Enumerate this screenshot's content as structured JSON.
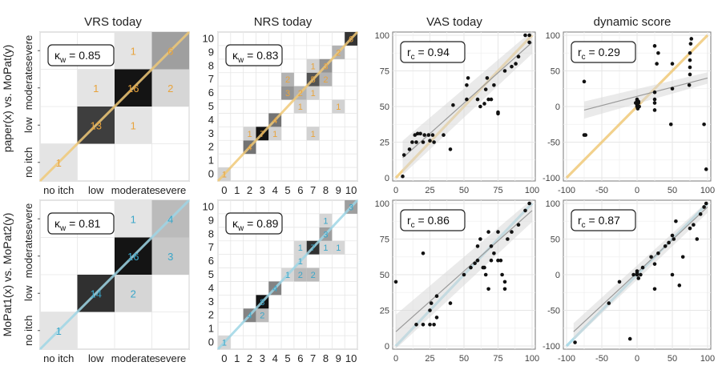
{
  "figure": {
    "column_titles": [
      "VRS today",
      "NRS today",
      "VAS today",
      "dynamic score"
    ],
    "row_labels": [
      "paper(x) vs. MoPat(y)",
      "MoPat1(x) vs. MoPat2(y)"
    ],
    "colors": {
      "row1_accent": "#f0c978",
      "row1_count_text": "#e8a33c",
      "row2_accent": "#9fd6e6",
      "row2_count_text": "#3aa6c9",
      "grid": "#e6e6e6",
      "panel_border": "#7a7a7a",
      "fit_line": "#9a9a9a",
      "ci_band": "#d9d9d9"
    }
  },
  "chart_data": [
    {
      "type": "heatmap",
      "id": "vrs-row1",
      "title": "VRS today",
      "categories": [
        "no itch",
        "low",
        "moderate",
        "severe"
      ],
      "stat_label": "κw = 0.85",
      "cells": [
        {
          "x": 0,
          "y": 0,
          "count": 1
        },
        {
          "x": 1,
          "y": 1,
          "count": 13
        },
        {
          "x": 2,
          "y": 1,
          "count": 1
        },
        {
          "x": 1,
          "y": 2,
          "count": 1
        },
        {
          "x": 2,
          "y": 2,
          "count": 16
        },
        {
          "x": 3,
          "y": 2,
          "count": 2
        },
        {
          "x": 2,
          "y": 3,
          "count": 1
        },
        {
          "x": 3,
          "y": 3,
          "count": 6
        }
      ]
    },
    {
      "type": "heatmap",
      "id": "nrs-row1",
      "title": "NRS today",
      "categories": [
        "0",
        "1",
        "2",
        "3",
        "4",
        "5",
        "6",
        "7",
        "8",
        "9",
        "10"
      ],
      "stat_label": "κw = 0.83",
      "cells": [
        {
          "x": 0,
          "y": 0,
          "count": 1
        },
        {
          "x": 2,
          "y": 2,
          "count": 4
        },
        {
          "x": 2,
          "y": 3,
          "count": 1
        },
        {
          "x": 3,
          "y": 3,
          "count": 7
        },
        {
          "x": 4,
          "y": 3,
          "count": 1
        },
        {
          "x": 7,
          "y": 3,
          "count": 1
        },
        {
          "x": 4,
          "y": 4,
          "count": 4
        },
        {
          "x": 6,
          "y": 5,
          "count": 1
        },
        {
          "x": 9,
          "y": 5,
          "count": 1
        },
        {
          "x": 5,
          "y": 6,
          "count": 3
        },
        {
          "x": 6,
          "y": 6,
          "count": 2
        },
        {
          "x": 7,
          "y": 6,
          "count": 1
        },
        {
          "x": 5,
          "y": 7,
          "count": 2
        },
        {
          "x": 7,
          "y": 7,
          "count": 5
        },
        {
          "x": 8,
          "y": 7,
          "count": 2
        },
        {
          "x": 7,
          "y": 8,
          "count": 1
        },
        {
          "x": 8,
          "y": 8,
          "count": 3
        },
        {
          "x": 9,
          "y": 9,
          "count": 2
        },
        {
          "x": 10,
          "y": 10,
          "count": 6
        }
      ]
    },
    {
      "type": "scatter",
      "id": "vas-row1",
      "title": "VAS today",
      "stat_label": "rc = 0.94",
      "xlim": [
        0,
        100
      ],
      "ylim": [
        0,
        100
      ],
      "xticks": [
        0,
        25,
        50,
        75,
        100
      ],
      "yticks": [
        0,
        25,
        50,
        75,
        100
      ],
      "fit": {
        "x0": 5,
        "y0": 14,
        "x1": 100,
        "y1": 95
      },
      "points": [
        [
          5,
          1
        ],
        [
          6,
          16
        ],
        [
          10,
          20
        ],
        [
          12,
          25
        ],
        [
          14,
          30
        ],
        [
          15,
          25
        ],
        [
          16,
          31
        ],
        [
          18,
          31
        ],
        [
          20,
          25
        ],
        [
          21,
          30
        ],
        [
          24,
          30
        ],
        [
          25,
          26
        ],
        [
          27,
          30
        ],
        [
          28,
          25
        ],
        [
          35,
          30
        ],
        [
          40,
          20
        ],
        [
          42,
          51
        ],
        [
          52,
          55
        ],
        [
          52,
          65
        ],
        [
          53,
          70
        ],
        [
          60,
          55
        ],
        [
          62,
          50
        ],
        [
          65,
          52
        ],
        [
          66,
          62
        ],
        [
          67,
          70
        ],
        [
          68,
          55
        ],
        [
          70,
          55
        ],
        [
          72,
          65
        ],
        [
          75,
          45
        ],
        [
          75,
          46
        ],
        [
          80,
          75
        ],
        [
          85,
          78
        ],
        [
          88,
          80
        ],
        [
          90,
          85
        ],
        [
          95,
          100
        ],
        [
          98,
          100
        ],
        [
          98,
          95
        ]
      ]
    },
    {
      "type": "scatter",
      "id": "dyn-row1",
      "title": "dynamic score",
      "stat_label": "rc = 0.29",
      "xlim": [
        -100,
        100
      ],
      "ylim": [
        -100,
        100
      ],
      "xticks": [
        -100,
        -50,
        0,
        50,
        100
      ],
      "yticks": [
        -100,
        -50,
        0,
        50,
        100
      ],
      "fit": {
        "x0": -75,
        "y0": -5,
        "x1": 100,
        "y1": 40
      },
      "points": [
        [
          -75,
          35
        ],
        [
          -75,
          -40
        ],
        [
          -73,
          -40
        ],
        [
          -2,
          5
        ],
        [
          0,
          0
        ],
        [
          0,
          2
        ],
        [
          0,
          8
        ],
        [
          0,
          10
        ],
        [
          1,
          -3
        ],
        [
          2,
          5
        ],
        [
          2,
          7
        ],
        [
          3,
          0
        ],
        [
          25,
          -5
        ],
        [
          25,
          5
        ],
        [
          25,
          10
        ],
        [
          25,
          20
        ],
        [
          25,
          85
        ],
        [
          28,
          60
        ],
        [
          30,
          75
        ],
        [
          48,
          -25
        ],
        [
          50,
          25
        ],
        [
          50,
          60
        ],
        [
          74,
          30
        ],
        [
          75,
          45
        ],
        [
          75,
          55
        ],
        [
          75,
          65
        ],
        [
          75,
          75
        ],
        [
          76,
          88
        ],
        [
          77,
          95
        ],
        [
          95,
          -25
        ],
        [
          98,
          -88
        ]
      ]
    },
    {
      "type": "heatmap",
      "id": "vrs-row2",
      "title": "VRS today",
      "categories": [
        "no itch",
        "low",
        "moderate",
        "severe"
      ],
      "stat_label": "κw = 0.81",
      "cells": [
        {
          "x": 0,
          "y": 0,
          "count": 1
        },
        {
          "x": 1,
          "y": 1,
          "count": 14
        },
        {
          "x": 2,
          "y": 1,
          "count": 2
        },
        {
          "x": 2,
          "y": 2,
          "count": 16
        },
        {
          "x": 3,
          "y": 2,
          "count": 3
        },
        {
          "x": 2,
          "y": 3,
          "count": 1
        },
        {
          "x": 3,
          "y": 3,
          "count": 4
        }
      ]
    },
    {
      "type": "heatmap",
      "id": "nrs-row2",
      "title": "NRS today",
      "categories": [
        "0",
        "1",
        "2",
        "3",
        "4",
        "5",
        "6",
        "7",
        "8",
        "9",
        "10"
      ],
      "stat_label": "κw = 0.89",
      "cells": [
        {
          "x": 0,
          "y": 0,
          "count": 1
        },
        {
          "x": 2,
          "y": 2,
          "count": 4
        },
        {
          "x": 3,
          "y": 2,
          "count": 2
        },
        {
          "x": 3,
          "y": 3,
          "count": 8
        },
        {
          "x": 4,
          "y": 4,
          "count": 4
        },
        {
          "x": 5,
          "y": 5,
          "count": 1
        },
        {
          "x": 6,
          "y": 5,
          "count": 2
        },
        {
          "x": 7,
          "y": 5,
          "count": 2
        },
        {
          "x": 6,
          "y": 6,
          "count": 1
        },
        {
          "x": 6,
          "y": 7,
          "count": 1
        },
        {
          "x": 7,
          "y": 7,
          "count": 7
        },
        {
          "x": 8,
          "y": 7,
          "count": 1
        },
        {
          "x": 9,
          "y": 7,
          "count": 1
        },
        {
          "x": 8,
          "y": 8,
          "count": 3
        },
        {
          "x": 8,
          "y": 9,
          "count": 1
        },
        {
          "x": 10,
          "y": 10,
          "count": 3
        }
      ]
    },
    {
      "type": "scatter",
      "id": "vas-row2",
      "title": "VAS today",
      "stat_label": "rc = 0.86",
      "xlim": [
        0,
        100
      ],
      "ylim": [
        0,
        100
      ],
      "xticks": [
        0,
        25,
        50,
        75,
        100
      ],
      "yticks": [
        0,
        25,
        50,
        75,
        100
      ],
      "fit": {
        "x0": 0,
        "y0": 10,
        "x1": 100,
        "y1": 95
      },
      "points": [
        [
          0,
          45
        ],
        [
          15,
          15
        ],
        [
          20,
          15
        ],
        [
          20,
          65
        ],
        [
          25,
          25
        ],
        [
          25,
          15
        ],
        [
          26,
          30
        ],
        [
          28,
          15
        ],
        [
          30,
          35
        ],
        [
          30,
          20
        ],
        [
          40,
          30
        ],
        [
          50,
          50
        ],
        [
          55,
          55
        ],
        [
          58,
          58
        ],
        [
          60,
          60
        ],
        [
          60,
          70
        ],
        [
          62,
          75
        ],
        [
          64,
          55
        ],
        [
          65,
          55
        ],
        [
          66,
          50
        ],
        [
          68,
          40
        ],
        [
          68,
          80
        ],
        [
          70,
          70
        ],
        [
          70,
          60
        ],
        [
          72,
          65
        ],
        [
          75,
          80
        ],
        [
          75,
          60
        ],
        [
          77,
          60
        ],
        [
          78,
          50
        ],
        [
          80,
          40
        ],
        [
          80,
          45
        ],
        [
          82,
          75
        ],
        [
          85,
          80
        ],
        [
          90,
          85
        ],
        [
          95,
          95
        ],
        [
          98,
          100
        ]
      ]
    },
    {
      "type": "scatter",
      "id": "dyn-row2",
      "title": "dynamic score",
      "stat_label": "rc = 0.87",
      "xlim": [
        -100,
        100
      ],
      "ylim": [
        -100,
        100
      ],
      "xticks": [
        -100,
        -50,
        0,
        50,
        100
      ],
      "yticks": [
        -100,
        -50,
        0,
        50,
        100
      ],
      "fit": {
        "x0": -90,
        "y0": -80,
        "x1": 100,
        "y1": 95
      },
      "points": [
        [
          -88,
          -95
        ],
        [
          -40,
          -40
        ],
        [
          -25,
          -10
        ],
        [
          -10,
          -90
        ],
        [
          -5,
          0
        ],
        [
          0,
          5
        ],
        [
          0,
          0
        ],
        [
          0,
          2
        ],
        [
          2,
          -5
        ],
        [
          5,
          0
        ],
        [
          8,
          10
        ],
        [
          20,
          25
        ],
        [
          25,
          15
        ],
        [
          25,
          -20
        ],
        [
          30,
          30
        ],
        [
          40,
          40
        ],
        [
          45,
          45
        ],
        [
          50,
          0
        ],
        [
          50,
          55
        ],
        [
          52,
          50
        ],
        [
          55,
          75
        ],
        [
          60,
          -15
        ],
        [
          65,
          25
        ],
        [
          75,
          65
        ],
        [
          80,
          70
        ],
        [
          85,
          50
        ],
        [
          90,
          85
        ],
        [
          95,
          95
        ],
        [
          98,
          100
        ]
      ]
    }
  ]
}
